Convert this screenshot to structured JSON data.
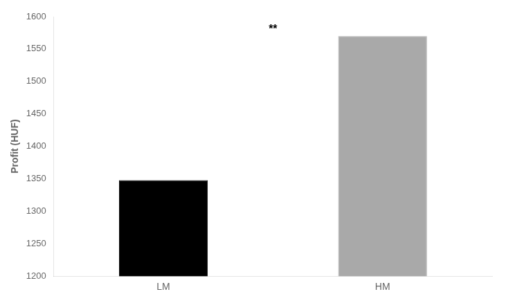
{
  "chart_data": {
    "type": "bar",
    "categories": [
      "LM",
      "HM"
    ],
    "values": [
      1348,
      1570
    ],
    "colors": [
      "#000000",
      "#a9a9a9"
    ],
    "ylabel": "Profit (HUF)",
    "annotation": "**",
    "ylim": [
      1200,
      1600
    ],
    "yticks": [
      1200,
      1250,
      1300,
      1350,
      1400,
      1450,
      1500,
      1550,
      1600
    ],
    "grid": false
  }
}
